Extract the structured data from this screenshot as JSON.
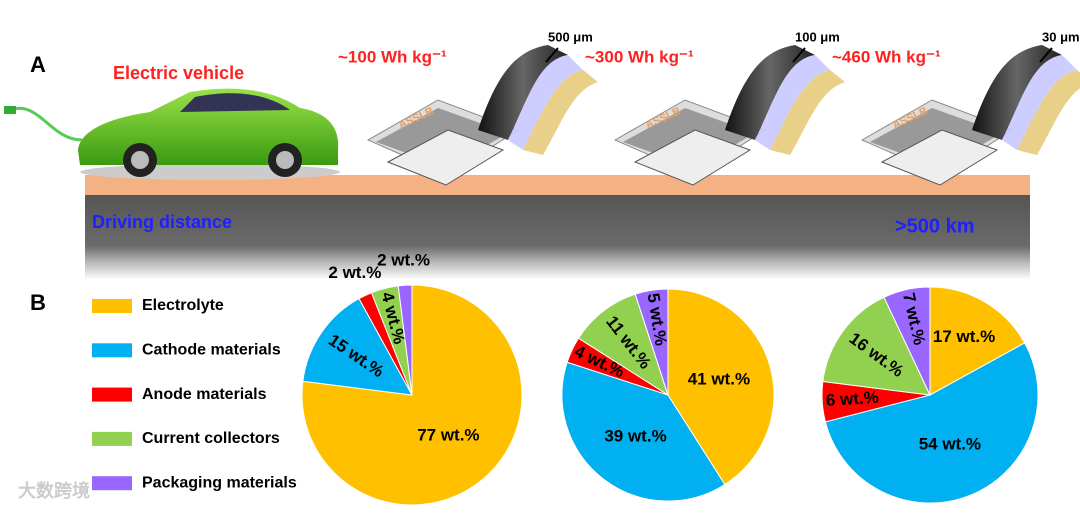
{
  "panel_labels": [
    "A",
    "B"
  ],
  "vehicle_label": "Electric vehicle",
  "distance_label": "Driving distance",
  "distance_value": ">500 km",
  "watermark": "大数跨境",
  "batteries": [
    {
      "energy": "~100 Wh kg⁻¹",
      "thickness": "500 μm",
      "label": "ASSLB"
    },
    {
      "energy": "~300 Wh kg⁻¹",
      "thickness": "100 μm",
      "label": "ASSLB"
    },
    {
      "energy": "~460 Wh kg⁻¹",
      "thickness": "30 μm",
      "label": "ASSLB"
    }
  ],
  "legend": {
    "labels": [
      "Electrolyte",
      "Cathode materials",
      "Anode materials",
      "Current collectors",
      "Packaging materials"
    ],
    "colors": [
      "#ffc000",
      "#00b0f0",
      "#ff0000",
      "#92d050",
      "#9966ff"
    ]
  },
  "chart_data": [
    {
      "type": "pie",
      "values": [
        77,
        15,
        2,
        4,
        2
      ],
      "value_labels": [
        "77 wt.%",
        "15 wt.%",
        "2 wt.%",
        "4 wt.%",
        "2 wt.%"
      ]
    },
    {
      "type": "pie",
      "values": [
        41,
        39,
        4,
        11,
        5
      ],
      "value_labels": [
        "41 wt.%",
        "39 wt.%",
        "4 wt.%",
        "11 wt.%",
        "5 wt.%"
      ]
    },
    {
      "type": "pie",
      "values": [
        17,
        54,
        6,
        16,
        7
      ],
      "value_labels": [
        "17 wt.%",
        "54 wt.%",
        "6 wt.%",
        "16 wt.%",
        "7 wt.%"
      ]
    }
  ]
}
